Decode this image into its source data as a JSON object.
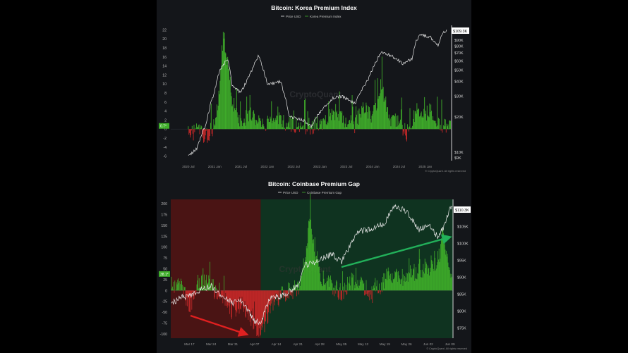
{
  "chart_data": [
    {
      "type": "line",
      "title": "Bitcoin: Korea Premium Index",
      "legend": [
        "Price USD",
        "Korea Premium Index"
      ],
      "watermark": "CryptoQuant",
      "credit": "© CryptoQuant. All rights reserved",
      "left_axis": {
        "ticks": [
          22,
          20,
          18,
          16,
          14,
          12,
          10,
          8,
          6,
          4,
          2,
          0,
          -2,
          -4,
          -6
        ],
        "ylim": [
          -7,
          23
        ]
      },
      "right_axis": {
        "ticks": [
          "$90K",
          "$80K",
          "$70K",
          "$60K",
          "$50K",
          "$40K",
          "$30K",
          "$20K",
          "$10K",
          "$9K"
        ],
        "scale": "log"
      },
      "x_ticks": [
        "2020 Jul",
        "2021 Jan",
        "2021 Jul",
        "2022 Jan",
        "2022 Jul",
        "2023 Jan",
        "2023 Jul",
        "2024 Jan",
        "2024 Jul",
        "2025 Jan"
      ],
      "current_price_label": "$109.3K",
      "current_index_label": "0.7*",
      "series": [
        {
          "name": "Price USD",
          "color": "#e8e8e8",
          "points": [
            [
              "2020-07",
              9200
            ],
            [
              "2020-09",
              10800
            ],
            [
              "2020-11",
              17000
            ],
            [
              "2021-01",
              33000
            ],
            [
              "2021-02",
              48000
            ],
            [
              "2021-04",
              63000
            ],
            [
              "2021-05",
              37000
            ],
            [
              "2021-07",
              32000
            ],
            [
              "2021-09",
              45000
            ],
            [
              "2021-11",
              66000
            ],
            [
              "2022-01",
              38000
            ],
            [
              "2022-04",
              40000
            ],
            [
              "2022-06",
              20000
            ],
            [
              "2022-09",
              19000
            ],
            [
              "2022-11",
              16500
            ],
            [
              "2023-01",
              22000
            ],
            [
              "2023-04",
              29000
            ],
            [
              "2023-06",
              30000
            ],
            [
              "2023-09",
              26000
            ],
            [
              "2023-12",
              42000
            ],
            [
              "2024-03",
              71000
            ],
            [
              "2024-06",
              64000
            ],
            [
              "2024-08",
              56000
            ],
            [
              "2024-10",
              63000
            ],
            [
              "2024-11",
              90000
            ],
            [
              "2024-12",
              100000
            ],
            [
              "2025-02",
              96000
            ],
            [
              "2025-04",
              80000
            ],
            [
              "2025-05",
              105000
            ],
            [
              "2025-06",
              109300
            ]
          ]
        },
        {
          "name": "Korea Premium Index",
          "positive_color": "#3fae2a",
          "negative_color": "#c62828",
          "points": [
            [
              "2020-07",
              -1
            ],
            [
              "2020-09",
              -0.5
            ],
            [
              "2020-11",
              -1.5
            ],
            [
              "2021-01",
              0.5
            ],
            [
              "2021-02",
              8
            ],
            [
              "2021-03",
              21
            ],
            [
              "2021-04",
              15
            ],
            [
              "2021-05",
              6
            ],
            [
              "2021-07",
              2
            ],
            [
              "2021-09",
              3
            ],
            [
              "2021-11",
              2.5
            ],
            [
              "2022-01",
              1
            ],
            [
              "2022-03",
              3.5
            ],
            [
              "2022-05",
              1.5
            ],
            [
              "2022-07",
              1
            ],
            [
              "2022-09",
              0.8
            ],
            [
              "2022-11",
              0.5
            ],
            [
              "2023-01",
              1.5
            ],
            [
              "2023-03",
              2.5
            ],
            [
              "2023-05",
              4
            ],
            [
              "2023-07",
              1.5
            ],
            [
              "2023-09",
              1
            ],
            [
              "2023-11",
              5
            ],
            [
              "2024-01",
              3
            ],
            [
              "2024-03",
              10
            ],
            [
              "2024-05",
              2
            ],
            [
              "2024-07",
              1.5
            ],
            [
              "2024-09",
              -1
            ],
            [
              "2024-11",
              4
            ],
            [
              "2024-12",
              3
            ],
            [
              "2025-02",
              4
            ],
            [
              "2025-04",
              1
            ],
            [
              "2025-06",
              0.7
            ]
          ]
        }
      ]
    },
    {
      "type": "line",
      "title": "Bitcoin: Coinbase Premium Gap",
      "legend": [
        "Price USD",
        "Coinbase Premium Gap"
      ],
      "watermark": "CryptoQuant",
      "credit": "© CryptoQuant. All rights reserved",
      "left_axis": {
        "ticks": [
          200,
          175,
          150,
          125,
          100,
          75,
          50,
          25,
          0,
          -25,
          -50,
          -75,
          -100
        ],
        "ylim": [
          -110,
          210
        ]
      },
      "right_axis": {
        "ticks": [
          "$105K",
          "$100K",
          "$95K",
          "$90K",
          "$85K",
          "$80K",
          "$75K"
        ]
      },
      "x_ticks": [
        "Mar 17",
        "Mar 24",
        "Mar 31",
        "Apr 07",
        "Apr 14",
        "Apr 21",
        "Apr 28",
        "May 05",
        "May 12",
        "May 19",
        "May 26",
        "Jun 02",
        "Jun 09"
      ],
      "current_price_label": "$110.3K",
      "current_gap_label": "38.1*",
      "shaded_regions": [
        {
          "from": "Mar 11",
          "to": "Apr 09",
          "color": "#4a1414"
        },
        {
          "from": "Apr 09",
          "to": "Jun 10",
          "color": "#0f3320"
        }
      ],
      "series": [
        {
          "name": "Price USD",
          "color": "#e8e8e8",
          "points": [
            [
              "Mar 11",
              82000
            ],
            [
              "Mar 14",
              84000
            ],
            [
              "Mar 17",
              84500
            ],
            [
              "Mar 20",
              86000
            ],
            [
              "Mar 24",
              87500
            ],
            [
              "Mar 28",
              84000
            ],
            [
              "Mar 31",
              82500
            ],
            [
              "Apr 03",
              83000
            ],
            [
              "Apr 07",
              77000
            ],
            [
              "Apr 09",
              76500
            ],
            [
              "Apr 12",
              84000
            ],
            [
              "Apr 16",
              84500
            ],
            [
              "Apr 21",
              87500
            ],
            [
              "Apr 23",
              93500
            ],
            [
              "Apr 28",
              95000
            ],
            [
              "May 02",
              97000
            ],
            [
              "May 05",
              94500
            ],
            [
              "May 08",
              99500
            ],
            [
              "May 10",
              103500
            ],
            [
              "May 14",
              104000
            ],
            [
              "May 19",
              106000
            ],
            [
              "May 22",
              111000
            ],
            [
              "May 26",
              109500
            ],
            [
              "May 30",
              104000
            ],
            [
              "Jun 02",
              105500
            ],
            [
              "Jun 05",
              102000
            ],
            [
              "Jun 07",
              104500
            ],
            [
              "Jun 09",
              110300
            ]
          ]
        },
        {
          "name": "Coinbase Premium Gap",
          "positive_color": "#3fae2a",
          "negative_color": "#c62828",
          "points": [
            [
              "Mar 11",
              -10
            ],
            [
              "Mar 14",
              20
            ],
            [
              "Mar 17",
              -40
            ],
            [
              "Mar 20",
              25
            ],
            [
              "Mar 24",
              10
            ],
            [
              "Mar 28",
              -20
            ],
            [
              "Mar 31",
              -50
            ],
            [
              "Apr 03",
              -30
            ],
            [
              "Apr 07",
              -80
            ],
            [
              "Apr 09",
              -100
            ],
            [
              "Apr 12",
              -40
            ],
            [
              "Apr 16",
              -5
            ],
            [
              "Apr 21",
              5
            ],
            [
              "Apr 23",
              60
            ],
            [
              "Apr 25",
              170
            ],
            [
              "Apr 28",
              30
            ],
            [
              "May 02",
              10
            ],
            [
              "May 05",
              -5
            ],
            [
              "May 08",
              20
            ],
            [
              "May 12",
              10
            ],
            [
              "May 15",
              -10
            ],
            [
              "May 19",
              25
            ],
            [
              "May 22",
              40
            ],
            [
              "May 26",
              30
            ],
            [
              "May 30",
              50
            ],
            [
              "Jun 02",
              55
            ],
            [
              "Jun 05",
              70
            ],
            [
              "Jun 07",
              120
            ],
            [
              "Jun 09",
              38.1
            ]
          ]
        }
      ],
      "annotations": [
        {
          "type": "arrow",
          "color": "#e02020",
          "direction": "down"
        },
        {
          "type": "arrow",
          "color": "#22b05a",
          "direction": "up"
        }
      ]
    }
  ]
}
